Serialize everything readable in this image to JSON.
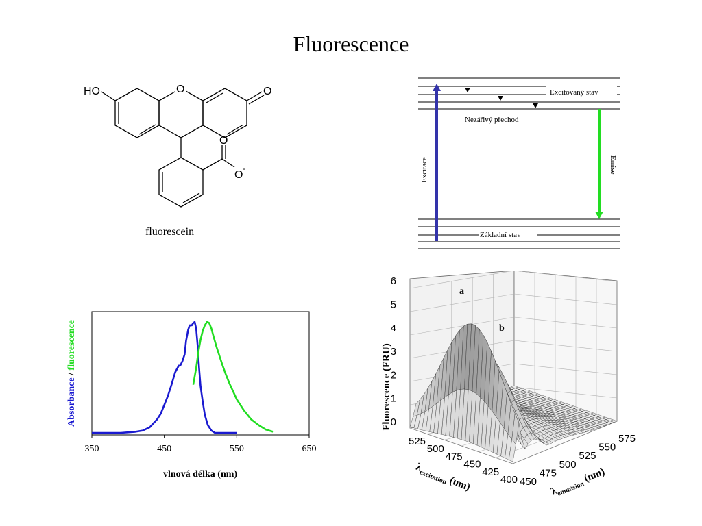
{
  "slide": {
    "title": "Fluorescence"
  },
  "molecule": {
    "caption": "fluorescein",
    "atoms": {
      "ho": "HO",
      "o_ring": "O",
      "o_keto": "O",
      "o_carbonyl": "O",
      "o_minus": "O",
      "charge": "-"
    }
  },
  "jablonski": {
    "excited_label": "Excitovaný stav",
    "nonrad_label": "Nezářivý přechod",
    "ground_label": "Základní stav",
    "excitation_label": "Excitace",
    "emission_label": "Emise",
    "colors": {
      "excitation": "#3333aa",
      "emission": "#22dd22"
    }
  },
  "chart_data": [
    {
      "type": "line",
      "title": "",
      "xlabel": "vlnová délka (nm)",
      "ylabel_parts": [
        {
          "text": "Absorbance",
          "color": "#1a1ad0"
        },
        {
          "text": " / ",
          "color": "#000000"
        },
        {
          "text": "fluorescence",
          "color": "#22dd22"
        }
      ],
      "xlim": [
        350,
        650
      ],
      "ylim": [
        0,
        1.1
      ],
      "x_ticks": [
        "350",
        "450",
        "550",
        "650"
      ],
      "grid": false,
      "series": [
        {
          "color": "#1a1ad0",
          "x": [
            350,
            370,
            390,
            400,
            410,
            420,
            430,
            440,
            445,
            450,
            455,
            460,
            465,
            470,
            472,
            475,
            478,
            480,
            483,
            485,
            488,
            490,
            492,
            494,
            496,
            498,
            500,
            503,
            506,
            510,
            515,
            520,
            530,
            550
          ],
          "y": [
            0.0,
            0.0,
            0.0,
            0.005,
            0.01,
            0.02,
            0.05,
            0.12,
            0.17,
            0.25,
            0.33,
            0.43,
            0.54,
            0.6,
            0.6,
            0.64,
            0.7,
            0.82,
            0.92,
            0.96,
            0.96,
            0.98,
            0.99,
            0.93,
            0.78,
            0.58,
            0.42,
            0.28,
            0.16,
            0.07,
            0.02,
            0.0,
            0.0,
            0.0
          ]
        },
        {
          "color": "#22dd22",
          "x": [
            490,
            494,
            497,
            500,
            503,
            506,
            509,
            512,
            515,
            518,
            522,
            526,
            530,
            535,
            540,
            545,
            550,
            560,
            570,
            580,
            590,
            600
          ],
          "y": [
            0.43,
            0.58,
            0.72,
            0.83,
            0.91,
            0.96,
            0.99,
            0.98,
            0.93,
            0.86,
            0.77,
            0.69,
            0.61,
            0.52,
            0.44,
            0.37,
            0.3,
            0.2,
            0.12,
            0.07,
            0.03,
            0.01
          ]
        }
      ]
    },
    {
      "type": "surface3d",
      "title": "",
      "zlabel": "Fluorescence (FRU)",
      "xlabel_symbol": "λ",
      "xlabel_sub": "excitation",
      "xlabel_unit": " (nm)",
      "ylabel_symbol": "λ",
      "ylabel_sub": "emmision",
      "ylabel_unit": " (nm)",
      "z_ticks": [
        "0",
        "1",
        "2",
        "3",
        "4",
        "5",
        "6"
      ],
      "excitation_ticks": [
        "525",
        "500",
        "475",
        "450",
        "425",
        "400"
      ],
      "emission_ticks": [
        "450",
        "475",
        "500",
        "525",
        "550",
        "575"
      ],
      "zlim": [
        0,
        6
      ],
      "peaks": [
        {
          "label": "a",
          "excitation": 490,
          "emission": 490,
          "height": 5.2
        },
        {
          "label": "b",
          "excitation": 490,
          "emission": 512,
          "height": 3.6
        }
      ]
    }
  ]
}
